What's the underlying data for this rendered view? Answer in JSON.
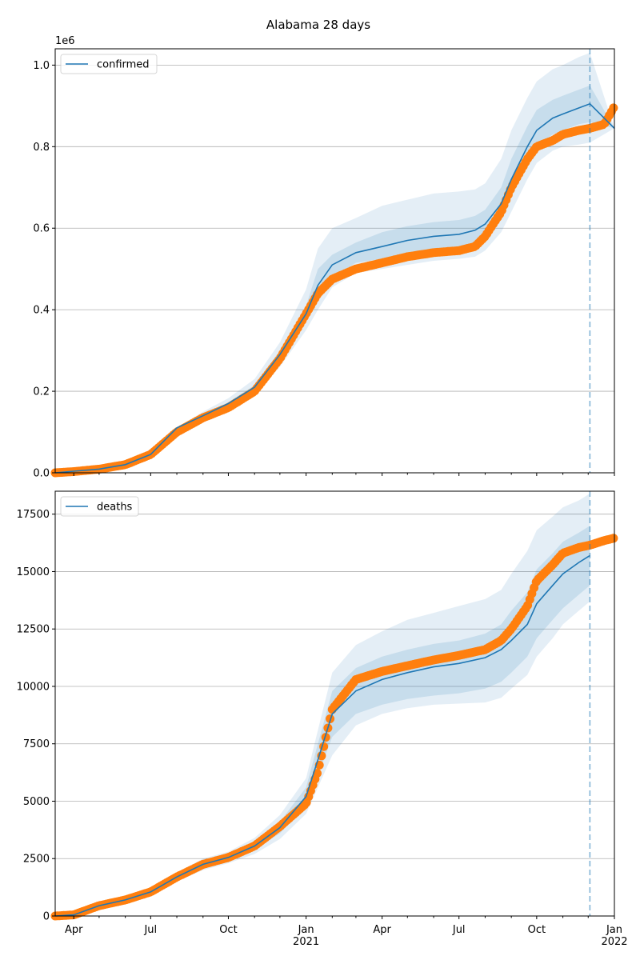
{
  "title": "Alabama 28 days",
  "colors": {
    "model_line": "#1f77b4",
    "model_band": "#1f77b4",
    "observed": "#ff7f0e",
    "grid": "#b0b0b0",
    "forecast_marker": "#1f77b4"
  },
  "chart_data": [
    {
      "type": "line",
      "panel": "top",
      "title": "",
      "xlabel": "",
      "ylabel": "",
      "y_scale_label": "1e6",
      "x_range": [
        "2020-03-10",
        "2022-01-01"
      ],
      "ylim": [
        0,
        1.04
      ],
      "y_ticks": [
        0.0,
        0.2,
        0.4,
        0.6,
        0.8,
        1.0
      ],
      "y_tick_labels": [
        "0.0",
        "0.2",
        "0.4",
        "0.6",
        "0.8",
        "1.0"
      ],
      "grid": "horizontal",
      "legend": {
        "placement": "top-left",
        "entries": [
          "confirmed"
        ]
      },
      "forecast_date": "2021-12-03",
      "model": {
        "name": "confirmed",
        "x": [
          "2020-03-10",
          "2020-04-01",
          "2020-05-01",
          "2020-06-01",
          "2020-07-01",
          "2020-08-01",
          "2020-09-01",
          "2020-10-01",
          "2020-11-01",
          "2020-12-01",
          "2021-01-01",
          "2021-01-15",
          "2021-02-01",
          "2021-03-01",
          "2021-04-01",
          "2021-05-01",
          "2021-06-01",
          "2021-07-01",
          "2021-07-20",
          "2021-08-01",
          "2021-08-20",
          "2021-09-01",
          "2021-09-20",
          "2021-10-01",
          "2021-10-20",
          "2021-11-01",
          "2021-11-20",
          "2021-12-03",
          "2022-01-01"
        ],
        "y": [
          0.0,
          0.004,
          0.009,
          0.02,
          0.045,
          0.11,
          0.14,
          0.17,
          0.21,
          0.29,
          0.39,
          0.46,
          0.51,
          0.54,
          0.555,
          0.57,
          0.58,
          0.585,
          0.595,
          0.61,
          0.66,
          0.72,
          0.8,
          0.84,
          0.87,
          0.88,
          0.895,
          0.905,
          0.845
        ],
        "band_inner": [
          [
            0.0,
            0.004,
            0.009,
            0.02,
            0.045,
            0.11,
            0.138,
            0.167,
            0.205,
            0.28,
            0.37,
            0.42,
            0.48,
            0.515,
            0.525,
            0.535,
            0.545,
            0.55,
            0.56,
            0.575,
            0.62,
            0.675,
            0.76,
            0.8,
            0.83,
            0.84,
            0.855,
            0.86,
            0.845
          ],
          [
            0.0,
            0.004,
            0.009,
            0.02,
            0.045,
            0.11,
            0.142,
            0.173,
            0.215,
            0.3,
            0.41,
            0.5,
            0.535,
            0.565,
            0.59,
            0.605,
            0.615,
            0.62,
            0.63,
            0.645,
            0.7,
            0.77,
            0.85,
            0.89,
            0.915,
            0.925,
            0.94,
            0.95,
            0.845
          ]
        ],
        "band_outer": [
          [
            0.0,
            0.004,
            0.009,
            0.02,
            0.045,
            0.11,
            0.13,
            0.157,
            0.19,
            0.26,
            0.35,
            0.4,
            0.455,
            0.49,
            0.5,
            0.51,
            0.52,
            0.525,
            0.53,
            0.545,
            0.59,
            0.64,
            0.72,
            0.76,
            0.79,
            0.8,
            0.805,
            0.81,
            0.845
          ],
          [
            0.0,
            0.004,
            0.009,
            0.02,
            0.045,
            0.11,
            0.15,
            0.183,
            0.23,
            0.32,
            0.45,
            0.55,
            0.6,
            0.625,
            0.655,
            0.67,
            0.685,
            0.69,
            0.695,
            0.71,
            0.77,
            0.84,
            0.92,
            0.96,
            0.99,
            1.0,
            1.02,
            1.03,
            0.845
          ]
        ]
      },
      "observed": {
        "x": [
          "2020-03-10",
          "2020-04-01",
          "2020-05-01",
          "2020-06-01",
          "2020-07-01",
          "2020-08-01",
          "2020-09-01",
          "2020-10-01",
          "2020-11-01",
          "2020-12-01",
          "2021-01-01",
          "2021-01-15",
          "2021-02-01",
          "2021-03-01",
          "2021-04-01",
          "2021-05-01",
          "2021-06-01",
          "2021-07-01",
          "2021-07-20",
          "2021-08-01",
          "2021-08-20",
          "2021-09-01",
          "2021-09-20",
          "2021-10-01",
          "2021-10-20",
          "2021-11-01",
          "2021-11-20",
          "2021-12-03",
          "2021-12-20",
          "2021-12-31"
        ],
        "y": [
          0.0,
          0.003,
          0.009,
          0.02,
          0.045,
          0.1,
          0.135,
          0.16,
          0.2,
          0.28,
          0.39,
          0.44,
          0.475,
          0.5,
          0.515,
          0.53,
          0.54,
          0.545,
          0.555,
          0.58,
          0.64,
          0.7,
          0.77,
          0.8,
          0.815,
          0.83,
          0.84,
          0.845,
          0.855,
          0.895
        ]
      }
    },
    {
      "type": "line",
      "panel": "bottom",
      "title": "",
      "xlabel": "",
      "ylabel": "",
      "x_range": [
        "2020-03-10",
        "2022-01-01"
      ],
      "ylim": [
        0,
        18500
      ],
      "y_ticks": [
        0,
        2500,
        5000,
        7500,
        10000,
        12500,
        15000,
        17500
      ],
      "y_tick_labels": [
        "0",
        "2500",
        "5000",
        "7500",
        "10000",
        "12500",
        "15000",
        "17500"
      ],
      "x_tick_labels": [
        "Apr",
        "Jul",
        "Oct",
        "Jan\n2021",
        "Apr",
        "Jul",
        "Oct",
        "Jan\n2022"
      ],
      "grid": "horizontal",
      "legend": {
        "placement": "top-left",
        "entries": [
          "deaths"
        ]
      },
      "forecast_date": "2021-12-03",
      "model": {
        "name": "deaths",
        "x": [
          "2020-03-10",
          "2020-04-01",
          "2020-05-01",
          "2020-06-01",
          "2020-07-01",
          "2020-08-01",
          "2020-09-01",
          "2020-10-01",
          "2020-11-01",
          "2020-12-01",
          "2021-01-01",
          "2021-01-15",
          "2021-02-01",
          "2021-03-01",
          "2021-04-01",
          "2021-05-01",
          "2021-06-01",
          "2021-07-01",
          "2021-08-01",
          "2021-08-20",
          "2021-09-01",
          "2021-09-20",
          "2021-10-01",
          "2021-10-20",
          "2021-11-01",
          "2021-11-20",
          "2021-12-03"
        ],
        "y": [
          0,
          50,
          450,
          700,
          1050,
          1700,
          2250,
          2550,
          3050,
          3850,
          5200,
          6800,
          8800,
          9800,
          10300,
          10600,
          10850,
          11000,
          11250,
          11600,
          12000,
          12700,
          13600,
          14400,
          14900,
          15400,
          15700
        ],
        "band_inner": [
          [
            0,
            50,
            440,
            680,
            1000,
            1620,
            2150,
            2450,
            2900,
            3600,
            4800,
            6100,
            7800,
            8800,
            9200,
            9450,
            9600,
            9700,
            9900,
            10200,
            10600,
            11300,
            12100,
            12900,
            13400,
            14000,
            14400
          ],
          [
            0,
            50,
            460,
            720,
            1100,
            1780,
            2350,
            2650,
            3200,
            4100,
            5600,
            7500,
            9800,
            10800,
            11300,
            11600,
            11850,
            12000,
            12300,
            12700,
            13300,
            14100,
            15100,
            15800,
            16300,
            16700,
            17000
          ]
        ],
        "band_outer": [
          [
            0,
            50,
            420,
            650,
            950,
            1500,
            2000,
            2300,
            2700,
            3350,
            4450,
            5600,
            7000,
            8300,
            8800,
            9050,
            9200,
            9250,
            9300,
            9500,
            9900,
            10500,
            11300,
            12100,
            12700,
            13300,
            13700
          ],
          [
            0,
            50,
            480,
            750,
            1150,
            1900,
            2500,
            2800,
            3400,
            4400,
            6000,
            8100,
            10600,
            11800,
            12400,
            12900,
            13200,
            13500,
            13800,
            14200,
            14900,
            15900,
            16800,
            17400,
            17800,
            18100,
            18400
          ]
        ]
      },
      "observed": {
        "x": [
          "2020-03-10",
          "2020-04-01",
          "2020-05-01",
          "2020-06-01",
          "2020-07-01",
          "2020-08-01",
          "2020-09-01",
          "2020-10-01",
          "2020-11-01",
          "2020-12-01",
          "2021-01-01",
          "2021-01-15",
          "2021-02-01",
          "2021-03-01",
          "2021-04-01",
          "2021-05-01",
          "2021-06-01",
          "2021-07-01",
          "2021-08-01",
          "2021-08-20",
          "2021-09-01",
          "2021-09-20",
          "2021-10-01",
          "2021-10-20",
          "2021-11-01",
          "2021-11-20",
          "2021-12-03",
          "2021-12-20",
          "2021-12-31"
        ],
        "y": [
          0,
          50,
          450,
          700,
          1050,
          1700,
          2250,
          2550,
          3050,
          3900,
          4900,
          6300,
          9000,
          10300,
          10650,
          10900,
          11150,
          11350,
          11600,
          12000,
          12500,
          13500,
          14600,
          15300,
          15800,
          16050,
          16150,
          16350,
          16450
        ]
      }
    }
  ]
}
